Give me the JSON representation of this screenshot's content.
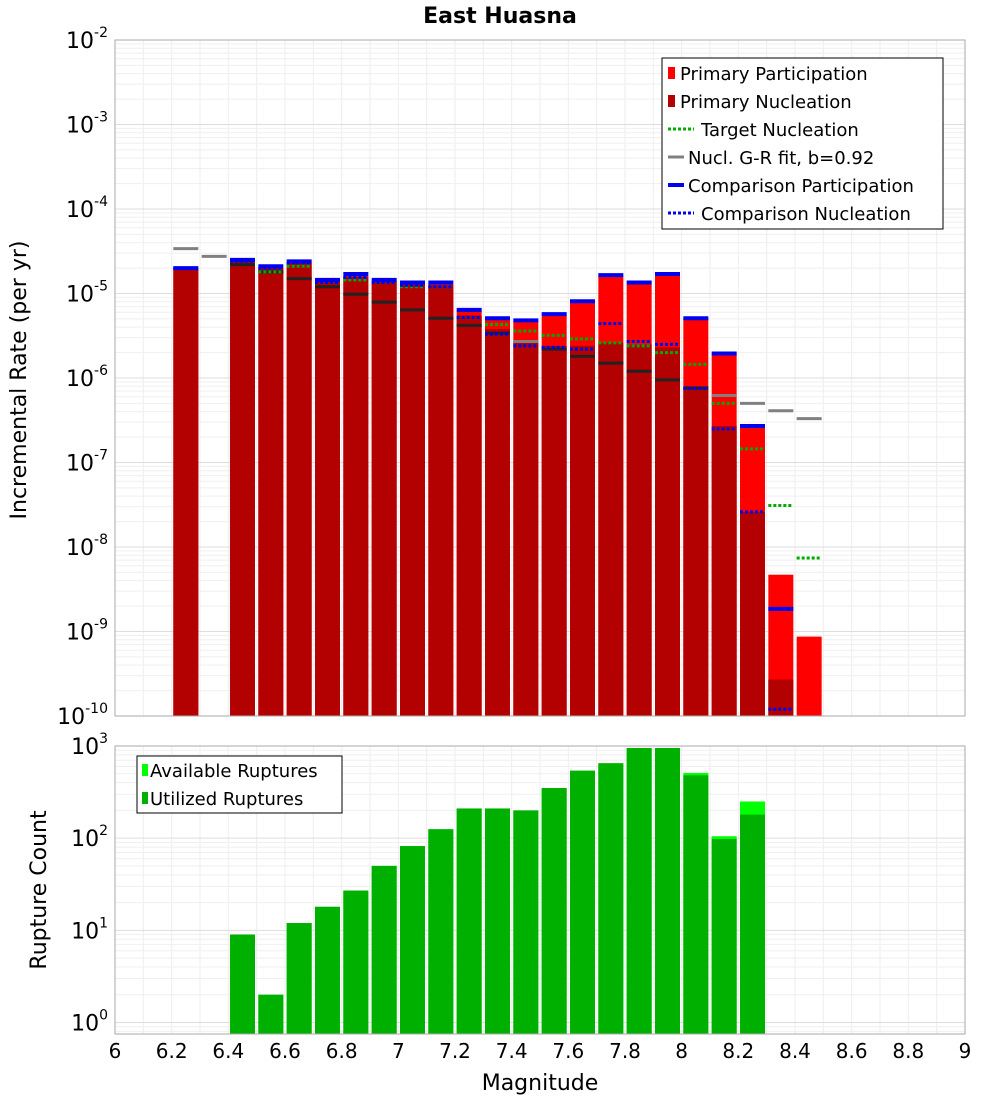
{
  "chart_data": [
    {
      "type": "bar",
      "title": "East Huasna",
      "xlabel": "",
      "ylabel": "Incremental Rate (per yr)",
      "yscale": "log",
      "xlim": [
        6,
        9
      ],
      "ylim": [
        1e-10,
        0.01
      ],
      "y_ticks": [
        {
          "base": "10",
          "exp": "-10"
        },
        {
          "base": "10",
          "exp": "-9"
        },
        {
          "base": "10",
          "exp": "-8"
        },
        {
          "base": "10",
          "exp": "-7"
        },
        {
          "base": "10",
          "exp": "-6"
        },
        {
          "base": "10",
          "exp": "-5"
        },
        {
          "base": "10",
          "exp": "-4"
        },
        {
          "base": "10",
          "exp": "-3"
        },
        {
          "base": "10",
          "exp": "-2"
        }
      ],
      "grid": true,
      "legend_position": "top-right",
      "x": [
        6.25,
        6.35,
        6.45,
        6.55,
        6.65,
        6.75,
        6.85,
        6.95,
        7.05,
        7.15,
        7.25,
        7.35,
        7.45,
        7.55,
        7.65,
        7.75,
        7.85,
        7.95,
        8.05,
        8.15,
        8.25,
        8.35,
        8.45,
        8.55
      ],
      "series": [
        {
          "name": "Primary Participation",
          "style": "bar",
          "color": "#ff0000",
          "values": [
            2e-05,
            null,
            2.4e-05,
            2e-05,
            2.3e-05,
            1.4e-05,
            1.6e-05,
            1.4e-05,
            1.3e-05,
            1.3e-05,
            6.2e-06,
            5e-06,
            4.7e-06,
            5.6e-06,
            8e-06,
            1.6e-05,
            1.3e-05,
            1.65e-05,
            5e-06,
            1.9e-06,
            2.6e-07,
            4.7e-09,
            8.7e-10,
            null
          ]
        },
        {
          "name": "Primary Nucleation",
          "style": "bar",
          "color": "#b30000",
          "values": [
            2e-05,
            null,
            2.4e-05,
            2e-05,
            2.3e-05,
            1.4e-05,
            1.6e-05,
            1.4e-05,
            1.3e-05,
            1.25e-05,
            5.5e-06,
            3.8e-06,
            2.7e-06,
            2.4e-06,
            2.4e-06,
            2.6e-06,
            2.5e-06,
            2.3e-06,
            8e-07,
            2.7e-07,
            2.6e-08,
            2.7e-10,
            null,
            null
          ]
        },
        {
          "name": "Target Nucleation",
          "style": "dotted-step",
          "color": "#00aa00",
          "values": [
            2e-05,
            null,
            2.4e-05,
            1.8e-05,
            2.1e-05,
            1.35e-05,
            1.45e-05,
            1.35e-05,
            1.2e-05,
            1.2e-05,
            5.2e-06,
            4.3e-06,
            3.6e-06,
            3.2e-06,
            2.9e-06,
            2.6e-06,
            2.4e-06,
            2e-06,
            1.45e-06,
            5e-07,
            1.45e-07,
            3.1e-08,
            7.4e-09,
            null
          ]
        },
        {
          "name": "Nucl. G-R fit, b=0.92",
          "style": "solid-step",
          "color": "#808080",
          "inner_color": "#222222",
          "values": [
            3.4e-05,
            2.75e-05,
            2.2e-05,
            1.8e-05,
            1.5e-05,
            1.2e-05,
            9.8e-06,
            7.9e-06,
            6.4e-06,
            5.1e-06,
            4.2e-06,
            3.4e-06,
            2.7e-06,
            2.2e-06,
            1.8e-06,
            1.5e-06,
            1.2e-06,
            9.5e-07,
            7.6e-07,
            6.2e-07,
            5e-07,
            4.1e-07,
            3.3e-07,
            null
          ]
        },
        {
          "name": "Comparison Participation",
          "style": "solid-step",
          "color": "#0000ee",
          "values": [
            2e-05,
            null,
            2.5e-05,
            2.1e-05,
            2.4e-05,
            1.45e-05,
            1.7e-05,
            1.45e-05,
            1.35e-05,
            1.35e-05,
            6.4e-06,
            5.1e-06,
            4.8e-06,
            5.7e-06,
            8.1e-06,
            1.65e-05,
            1.35e-05,
            1.7e-05,
            5.1e-06,
            1.95e-06,
            2.7e-07,
            1.85e-09,
            null,
            null
          ]
        },
        {
          "name": "Comparison Nucleation",
          "style": "dotted-step",
          "color": "#0000ee",
          "values": [
            2e-05,
            null,
            2.4e-05,
            2e-05,
            2.3e-05,
            1.35e-05,
            1.55e-05,
            1.35e-05,
            1.25e-05,
            1.2e-05,
            5.2e-06,
            3.3e-06,
            2.4e-06,
            2.3e-06,
            2.2e-06,
            4.4e-06,
            2.7e-06,
            2.5e-06,
            7.5e-07,
            2.5e-07,
            2.6e-08,
            1.2e-10,
            null,
            null
          ]
        }
      ]
    },
    {
      "type": "bar",
      "title": "",
      "xlabel": "Magnitude",
      "ylabel": "Rupture Count",
      "yscale": "log",
      "xlim": [
        6,
        9
      ],
      "ylim": [
        0.75,
        1000
      ],
      "x_ticks": [
        "6",
        "6.2",
        "6.4",
        "6.6",
        "6.8",
        "7",
        "7.2",
        "7.4",
        "7.6",
        "7.8",
        "8",
        "8.2",
        "8.4",
        "8.6",
        "8.8",
        "9"
      ],
      "y_ticks": [
        {
          "base": "10",
          "exp": "0"
        },
        {
          "base": "10",
          "exp": "1"
        },
        {
          "base": "10",
          "exp": "2"
        },
        {
          "base": "10",
          "exp": "3"
        }
      ],
      "grid": true,
      "legend_position": "top-left",
      "x": [
        6.25,
        6.35,
        6.45,
        6.55,
        6.65,
        6.75,
        6.85,
        6.95,
        7.05,
        7.15,
        7.25,
        7.35,
        7.45,
        7.55,
        7.65,
        7.75,
        7.85,
        7.95,
        8.05,
        8.15,
        8.25,
        8.35,
        8.45,
        8.55
      ],
      "series": [
        {
          "name": "Available Ruptures",
          "style": "bar",
          "color": "#00ff00",
          "values": [
            null,
            null,
            9,
            2,
            12,
            18,
            27,
            50,
            82,
            125,
            210,
            210,
            200,
            350,
            540,
            650,
            950,
            950,
            510,
            105,
            250,
            null,
            null,
            null
          ]
        },
        {
          "name": "Utilized Ruptures",
          "style": "bar",
          "color": "#00b000",
          "values": [
            null,
            null,
            9,
            2,
            12,
            18,
            27,
            50,
            82,
            125,
            210,
            210,
            200,
            350,
            540,
            650,
            950,
            950,
            480,
            98,
            180,
            null,
            null,
            null
          ]
        }
      ]
    }
  ]
}
